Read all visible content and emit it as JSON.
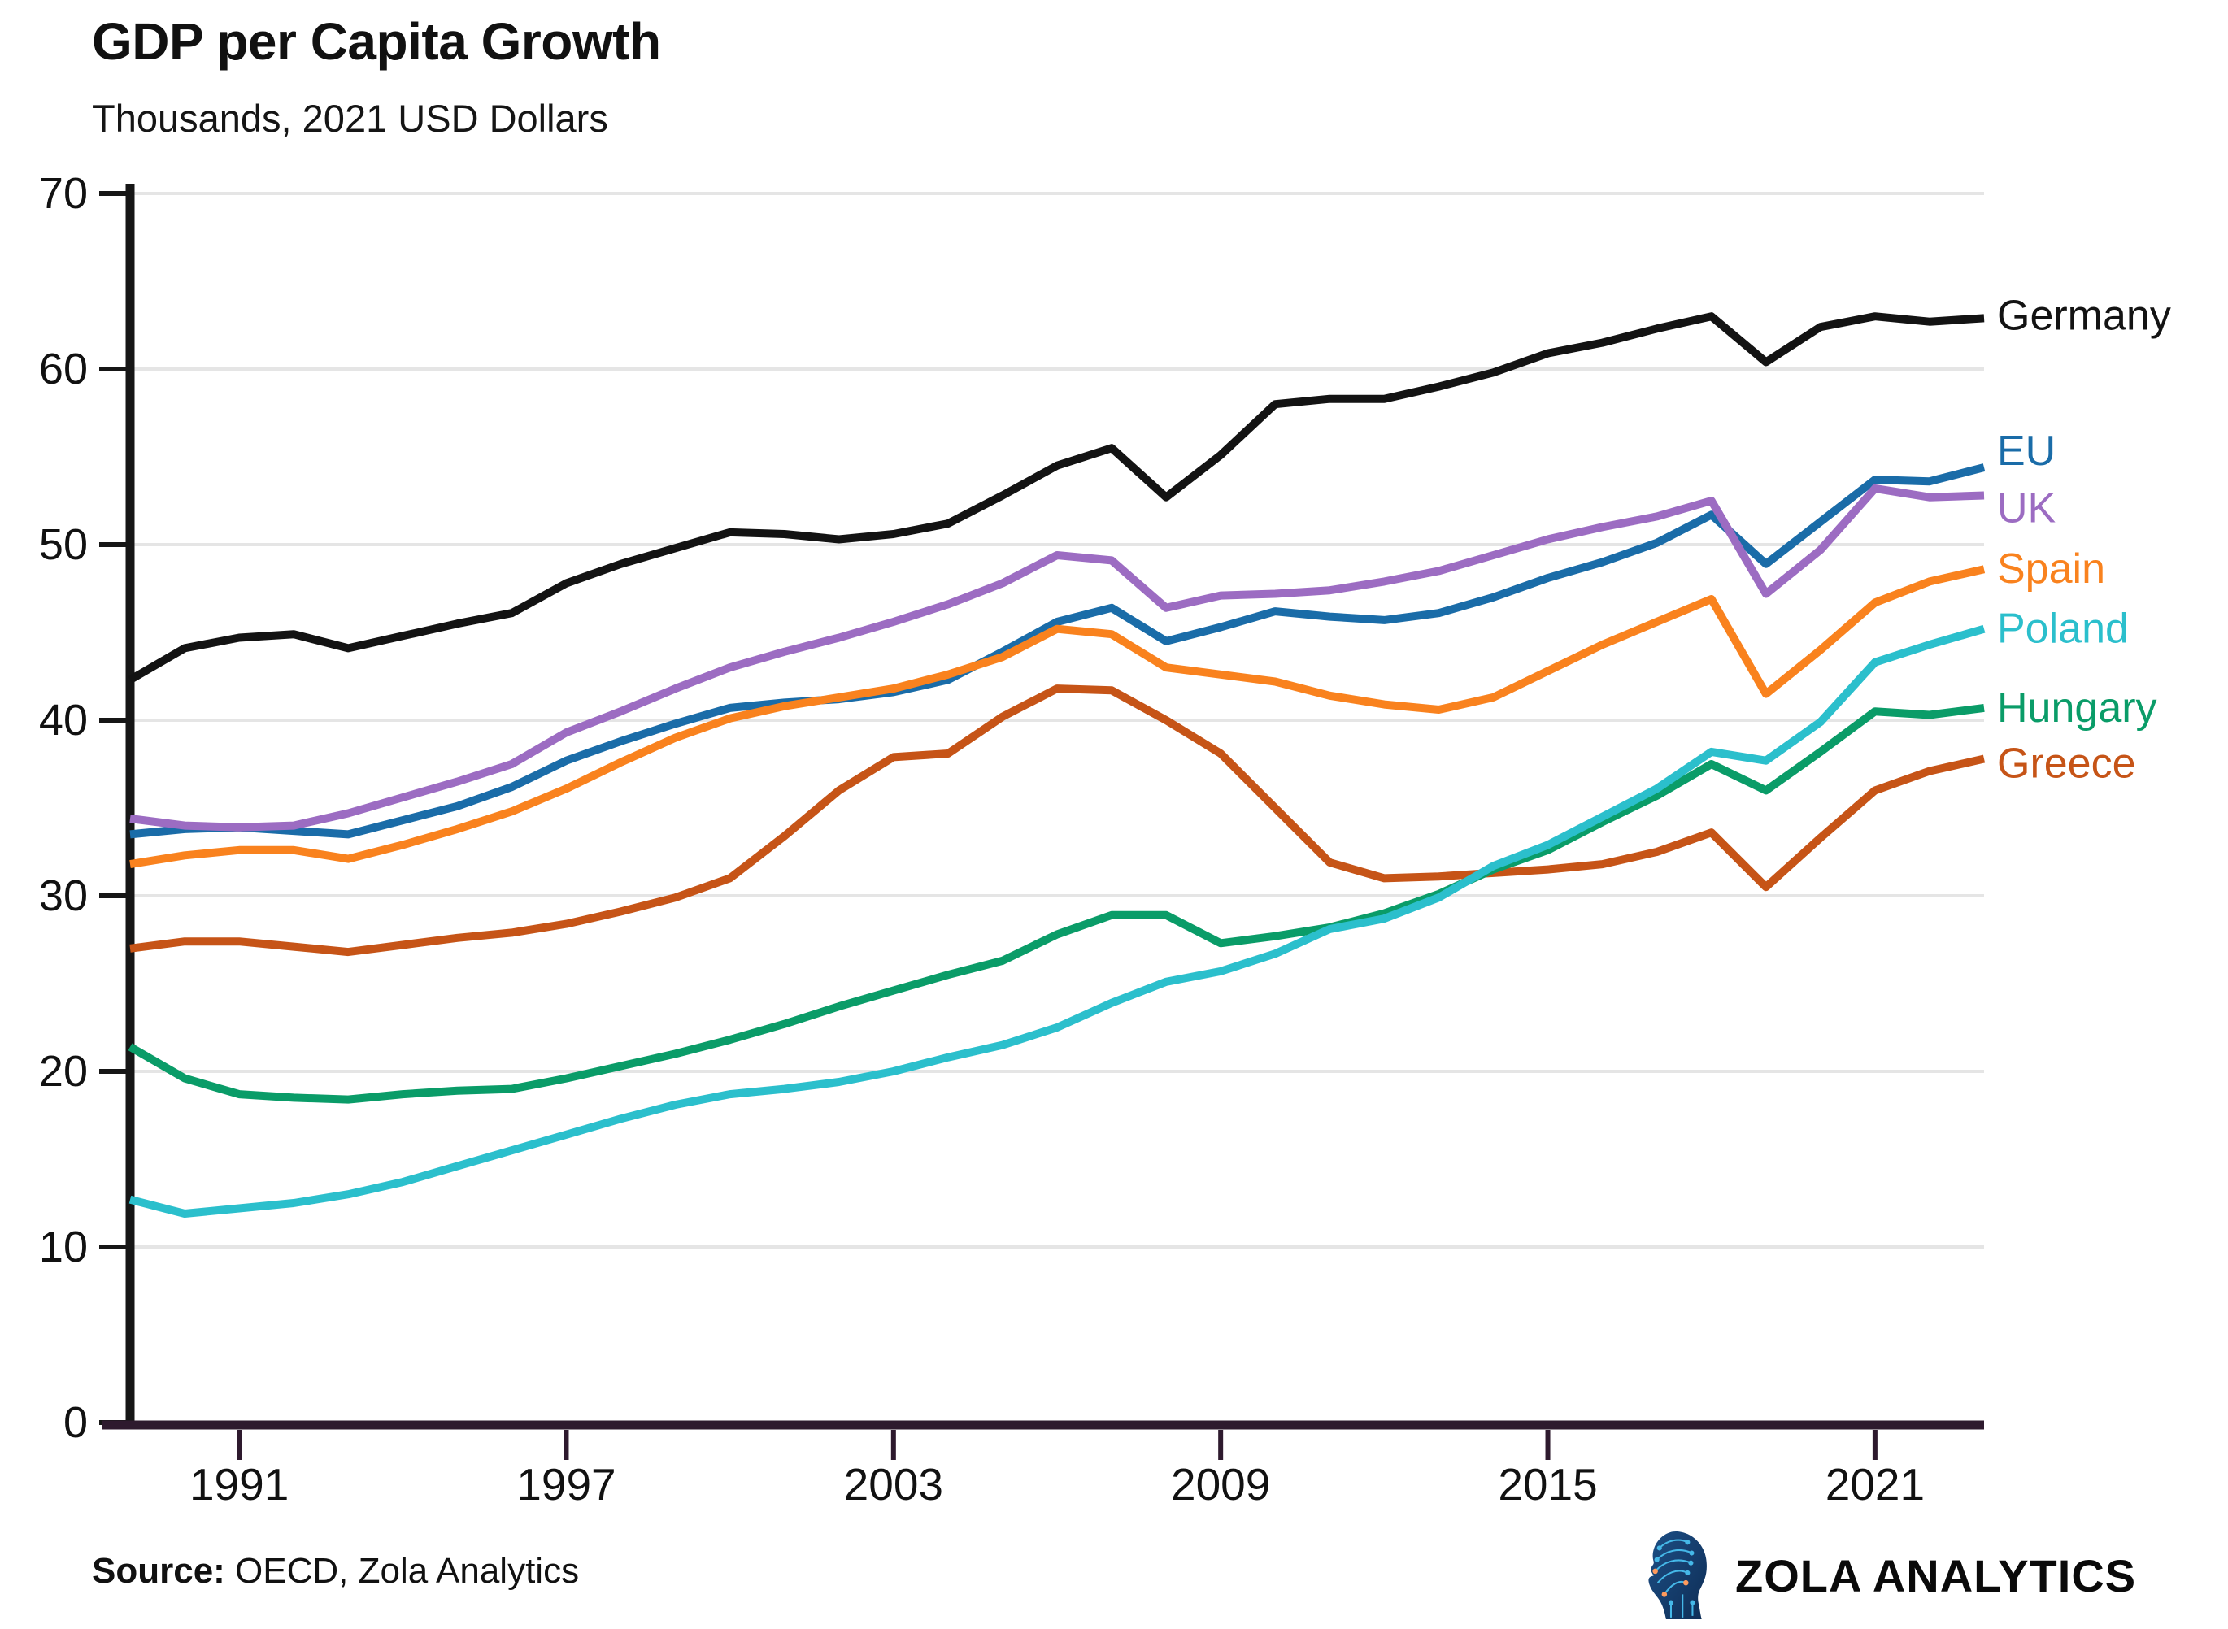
{
  "header": {
    "title": "GDP per Capita Growth",
    "subtitle": "Thousands, 2021 USD Dollars"
  },
  "footer": {
    "source_label": "Source:",
    "source_text": " OECD, Zola Analytics",
    "brand": "ZOLA ANALYTICS",
    "logo_icon": "ai-head-circuit-icon"
  },
  "colors": {
    "text": "#111111",
    "gridline": "#e5e5e5",
    "y_axis": "#161616",
    "x_axis": "#2e1a2e",
    "logo_navy_dark": "#0e2d55",
    "logo_navy_light": "#1d4f86",
    "logo_trace_cyan": "#45b8e8",
    "logo_trace_orange": "#ff9a5c"
  },
  "chart_data": {
    "type": "line",
    "title": "GDP per Capita Growth",
    "subtitle": "Thousands, 2021 USD Dollars",
    "xlabel": "",
    "ylabel": "",
    "ylim": [
      0,
      70
    ],
    "y_ticks": [
      0,
      10,
      20,
      30,
      40,
      50,
      60,
      70
    ],
    "x": [
      1989,
      1990,
      1991,
      1992,
      1993,
      1994,
      1995,
      1996,
      1997,
      1998,
      1999,
      2000,
      2001,
      2002,
      2003,
      2004,
      2005,
      2006,
      2007,
      2008,
      2009,
      2010,
      2011,
      2012,
      2013,
      2014,
      2015,
      2016,
      2017,
      2018,
      2019,
      2020,
      2021,
      2022,
      2023
    ],
    "x_ticks": [
      1991,
      1997,
      2003,
      2009,
      2015,
      2021
    ],
    "grid": "horizontal",
    "legend_position": "end-of-line-labels-right",
    "series": [
      {
        "name": "Germany",
        "color": "#131313",
        "z": 7,
        "label_dy": -3,
        "values": [
          42.3,
          44.1,
          44.7,
          44.9,
          44.1,
          44.8,
          45.5,
          46.1,
          47.8,
          48.9,
          49.8,
          50.7,
          50.6,
          50.3,
          50.6,
          51.2,
          52.8,
          54.5,
          55.5,
          52.7,
          55.1,
          58.0,
          58.3,
          58.3,
          59.0,
          59.8,
          60.9,
          61.5,
          62.3,
          63.0,
          60.4,
          62.4,
          63.0,
          62.7,
          62.9
        ]
      },
      {
        "name": "EU",
        "color": "#1a6ca8",
        "z": 4,
        "label_dy": -20,
        "values": [
          33.5,
          33.8,
          33.9,
          33.7,
          33.5,
          34.3,
          35.1,
          36.2,
          37.7,
          38.8,
          39.8,
          40.7,
          41.0,
          41.2,
          41.6,
          42.3,
          43.9,
          45.6,
          46.4,
          44.5,
          45.3,
          46.2,
          45.9,
          45.7,
          46.1,
          47.0,
          48.1,
          49.0,
          50.1,
          51.7,
          48.9,
          51.3,
          53.7,
          53.6,
          54.4
        ]
      },
      {
        "name": "UK",
        "color": "#9c6cc2",
        "z": 5,
        "label_dy": 16,
        "values": [
          34.4,
          34.0,
          33.9,
          34.0,
          34.7,
          35.6,
          36.5,
          37.5,
          39.3,
          40.5,
          41.8,
          43.0,
          43.9,
          44.7,
          45.6,
          46.6,
          47.8,
          49.4,
          49.1,
          46.4,
          47.1,
          47.2,
          47.4,
          47.9,
          48.5,
          49.4,
          50.3,
          51.0,
          51.6,
          52.5,
          47.2,
          49.7,
          53.2,
          52.7,
          52.8
        ]
      },
      {
        "name": "Spain",
        "color": "#f9821e",
        "z": 6,
        "label_dy": 0,
        "values": [
          31.8,
          32.3,
          32.6,
          32.6,
          32.1,
          32.9,
          33.8,
          34.8,
          36.1,
          37.6,
          39.0,
          40.1,
          40.8,
          41.3,
          41.8,
          42.6,
          43.6,
          45.2,
          44.9,
          43.0,
          42.6,
          42.2,
          41.4,
          40.9,
          40.6,
          41.3,
          42.8,
          44.3,
          45.6,
          46.9,
          41.5,
          44.0,
          46.7,
          47.9,
          48.6
        ]
      },
      {
        "name": "Poland",
        "color": "#2bbfcc",
        "z": 3,
        "label_dy": 0,
        "values": [
          12.7,
          11.9,
          12.2,
          12.5,
          13.0,
          13.7,
          14.6,
          15.5,
          16.4,
          17.3,
          18.1,
          18.7,
          19.0,
          19.4,
          20.0,
          20.8,
          21.5,
          22.5,
          23.9,
          25.1,
          25.7,
          26.7,
          28.1,
          28.7,
          29.9,
          31.7,
          32.9,
          34.5,
          36.1,
          38.2,
          37.7,
          39.9,
          43.3,
          44.3,
          45.2
        ]
      },
      {
        "name": "Hungary",
        "color": "#0a9c68",
        "z": 2,
        "label_dy": 0,
        "values": [
          21.4,
          19.6,
          18.7,
          18.5,
          18.4,
          18.7,
          18.9,
          19.0,
          19.6,
          20.3,
          21.0,
          21.8,
          22.7,
          23.7,
          24.6,
          25.5,
          26.3,
          27.8,
          28.9,
          28.9,
          27.3,
          27.7,
          28.2,
          29.0,
          30.1,
          31.5,
          32.6,
          34.2,
          35.7,
          37.5,
          36.0,
          38.2,
          40.5,
          40.3,
          40.7
        ]
      },
      {
        "name": "Greece",
        "color": "#c65417",
        "z": 1,
        "label_dy": 6,
        "values": [
          27.0,
          27.4,
          27.4,
          27.1,
          26.8,
          27.2,
          27.6,
          27.9,
          28.4,
          29.1,
          29.9,
          31.0,
          33.4,
          36.0,
          37.9,
          38.1,
          40.2,
          41.8,
          41.7,
          40.0,
          38.1,
          35.0,
          31.9,
          31.0,
          31.1,
          31.3,
          31.5,
          31.8,
          32.5,
          33.6,
          30.5,
          33.3,
          36.0,
          37.1,
          37.8
        ]
      }
    ]
  }
}
